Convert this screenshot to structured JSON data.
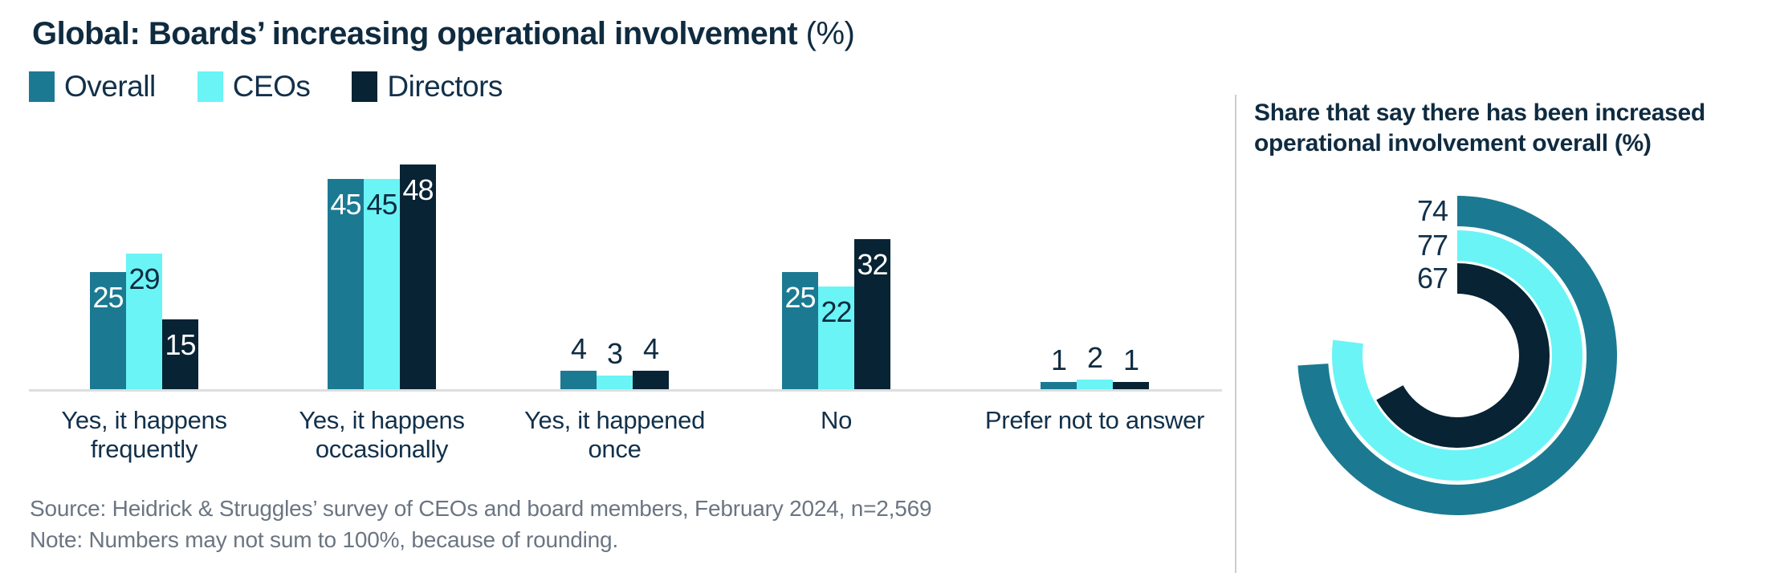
{
  "header": {
    "title": "Global: Boards’ increasing operational involvement",
    "title_suffix": "(%)"
  },
  "legend": {
    "position": "top-left",
    "items": [
      {
        "label": "Overall",
        "color": "#1B7A92"
      },
      {
        "label": "CEOs",
        "color": "#6AF4F6"
      },
      {
        "label": "Directors",
        "color": "#072334"
      }
    ]
  },
  "chart_data": [
    {
      "type": "bar",
      "title": "Global: Boards’ increasing operational involvement (%)",
      "categories": [
        "Yes, it happens\nfrequently",
        "Yes, it happens\noccasionally",
        "Yes, it happened\nonce",
        "No",
        "Prefer not to answer"
      ],
      "series": [
        {
          "name": "Overall",
          "color": "#1B7A92",
          "label_color_inside": "#FFFFFF",
          "values": [
            25,
            45,
            4,
            25,
            1
          ]
        },
        {
          "name": "CEOs",
          "color": "#6AF4F6",
          "label_color_inside": "#0F2B40",
          "values": [
            29,
            45,
            3,
            22,
            2
          ]
        },
        {
          "name": "Directors",
          "color": "#072334",
          "label_color_inside": "#FFFFFF",
          "values": [
            15,
            48,
            4,
            32,
            1
          ]
        }
      ],
      "ylim": [
        0,
        50
      ],
      "grid": false,
      "value_labels": true,
      "outside_label_color": "#0F2B40",
      "legend_position": "top",
      "xlabel": "",
      "ylabel": ""
    },
    {
      "type": "radial-donut",
      "title": "Share that say there has been increased operational involvement overall (%)",
      "start_angle": "top",
      "direction": "clockwise",
      "scale_max": 100,
      "series": [
        {
          "name": "Overall",
          "value": 74,
          "color": "#1B7A92"
        },
        {
          "name": "CEOs",
          "value": 77,
          "color": "#6AF4F6"
        },
        {
          "name": "Directors",
          "value": 67,
          "color": "#072334"
        }
      ],
      "label_color": "#12304A"
    }
  ],
  "right_panel": {
    "title_line1": "Share that say there has been increased",
    "title_line2": "operational involvement overall (%)"
  },
  "footer": {
    "source": "Source: Heidrick & Struggles’ survey of CEOs and board members, February 2024, n=2,569",
    "note": "Note: Numbers may not sum to 100%, because of rounding."
  }
}
